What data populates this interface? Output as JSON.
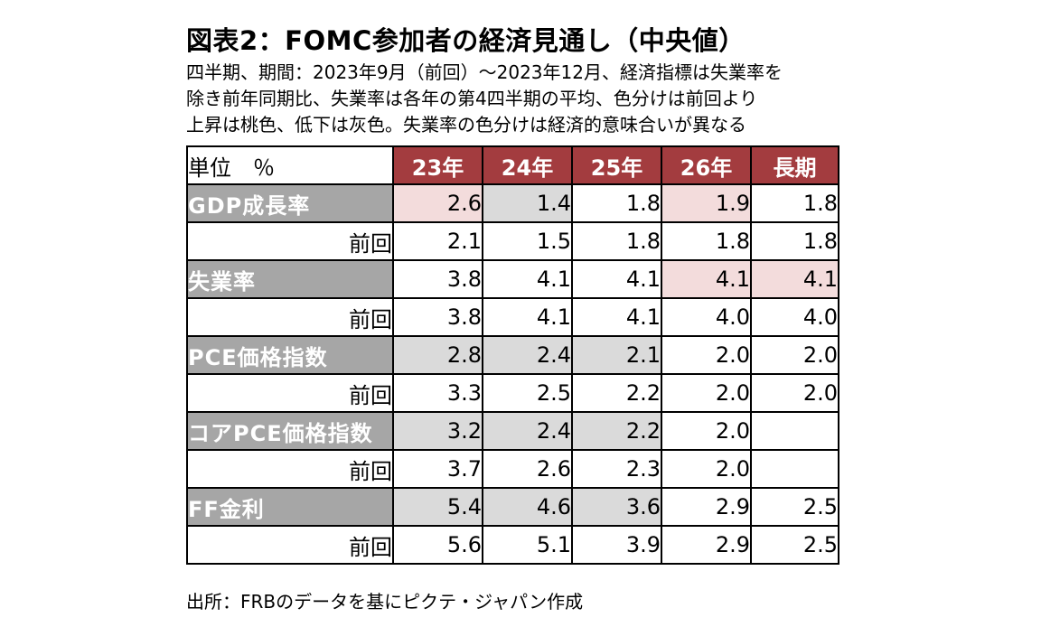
{
  "title": "図表2：FOMC参加者の経済見通し（中央値）",
  "subtitle_lines": [
    "四半期、期間：2023年9月（前回）～2023年12月、経済指標は失業率を",
    "除き前年同期比、失業率は各年の第4四半期の平均、色分けは前回より",
    "上昇は桃色、低下は灰色。失業率の色分けは経済的意味合いが異なる"
  ],
  "source": "出所：FRBのデータを基にピクテ・ジャパン作成",
  "colors": {
    "header_bg": "#a33c3f",
    "label_bg": "#a6a6a6",
    "up": "#f3dcdc",
    "down": "#dadada"
  },
  "chart_data": {
    "type": "table",
    "corner_label": "単位　％",
    "columns": [
      "23年",
      "24年",
      "25年",
      "26年",
      "長期"
    ],
    "prev_label": "前回",
    "rows": [
      {
        "label": "GDP成長率",
        "values": [
          "2.6",
          "1.4",
          "1.8",
          "1.9",
          "1.8"
        ],
        "change": [
          "up",
          "down",
          "",
          "up",
          ""
        ],
        "prev": [
          "2.1",
          "1.5",
          "1.8",
          "1.8",
          "1.8"
        ]
      },
      {
        "label": "失業率",
        "values": [
          "3.8",
          "4.1",
          "4.1",
          "4.1",
          "4.1"
        ],
        "change": [
          "",
          "",
          "",
          "up",
          "up"
        ],
        "prev": [
          "3.8",
          "4.1",
          "4.1",
          "4.0",
          "4.0"
        ]
      },
      {
        "label": "PCE価格指数",
        "values": [
          "2.8",
          "2.4",
          "2.1",
          "2.0",
          "2.0"
        ],
        "change": [
          "down",
          "down",
          "down",
          "",
          ""
        ],
        "prev": [
          "3.3",
          "2.5",
          "2.2",
          "2.0",
          "2.0"
        ]
      },
      {
        "label": "コアPCE価格指数",
        "values": [
          "3.2",
          "2.4",
          "2.2",
          "2.0",
          ""
        ],
        "change": [
          "down",
          "down",
          "down",
          "",
          ""
        ],
        "prev": [
          "3.7",
          "2.6",
          "2.3",
          "2.0",
          ""
        ]
      },
      {
        "label": "FF金利",
        "values": [
          "5.4",
          "4.6",
          "3.6",
          "2.9",
          "2.5"
        ],
        "change": [
          "down",
          "down",
          "down",
          "",
          ""
        ],
        "prev": [
          "5.6",
          "5.1",
          "3.9",
          "2.9",
          "2.5"
        ]
      }
    ]
  }
}
